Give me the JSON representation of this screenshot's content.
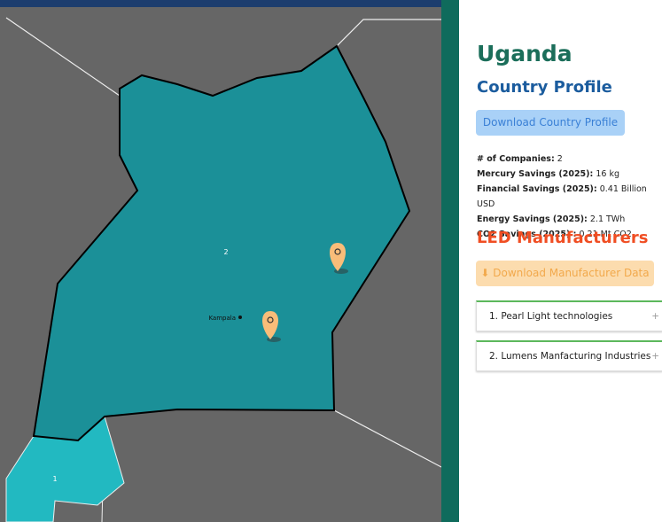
{
  "map": {
    "region_labels": [
      "2",
      "1"
    ],
    "city": "Kampala"
  },
  "panel": {
    "country": "Uganda",
    "subtitle": "Country Profile",
    "download_profile": "Download Country Profile",
    "stats": [
      {
        "label": "# of Companies:",
        "value": "2"
      },
      {
        "label": "Mercury Savings (2025):",
        "value": "16 kg"
      },
      {
        "label": "Financial Savings (2025):",
        "value": "0.41 Billion USD"
      },
      {
        "label": "Energy Savings (2025):",
        "value": "2.1 TWh"
      },
      {
        "label": "CO2 Savings (2025) :",
        "value": "0.21 Mt CO2"
      }
    ],
    "section": "LED Manufacturers",
    "download_manufacturers": "Download Manufacturer Data",
    "manufacturers": [
      "1. Pearl Light technologies",
      "2. Lumens Manfacturing Industries"
    ],
    "expand_icon": "+"
  }
}
